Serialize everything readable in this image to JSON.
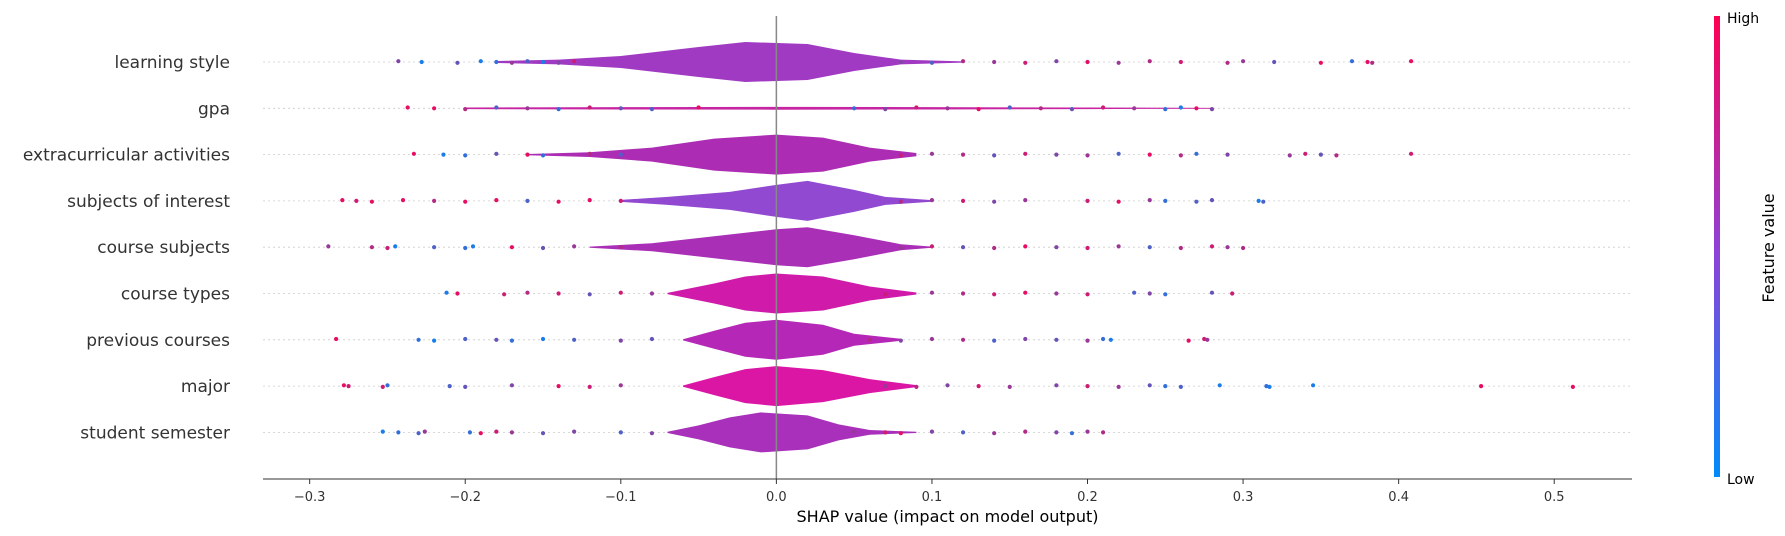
{
  "chart_data": {
    "type": "violin-beeswarm",
    "xlabel": "SHAP value (impact on model output)",
    "xlim": [
      -0.33,
      0.55
    ],
    "xticks": [
      -0.3,
      -0.2,
      -0.1,
      0.0,
      0.1,
      0.2,
      0.3,
      0.4,
      0.5
    ],
    "xtick_labels": [
      "−0.3",
      "−0.2",
      "−0.1",
      "0.0",
      "0.1",
      "0.2",
      "0.3",
      "0.4",
      "0.5"
    ],
    "colorbar": {
      "title": "Feature value",
      "high_label": "High",
      "low_label": "Low",
      "high_color": "#ff0052",
      "low_color": "#008bfb"
    },
    "features": [
      {
        "name": "learning style",
        "color": "#9b2fbf",
        "violin": [
          [
            -0.18,
            0.05
          ],
          [
            -0.14,
            0.12
          ],
          [
            -0.1,
            0.3
          ],
          [
            -0.05,
            0.75
          ],
          [
            -0.02,
            1.0
          ],
          [
            0.02,
            0.9
          ],
          [
            0.05,
            0.45
          ],
          [
            0.08,
            0.12
          ],
          [
            0.12,
            0.03
          ]
        ],
        "points": [
          [
            -0.243,
            0.5
          ],
          [
            -0.228,
            0.1
          ],
          [
            -0.205,
            0.4
          ],
          [
            -0.19,
            0.1
          ],
          [
            -0.18,
            0.2
          ],
          [
            -0.17,
            0.6
          ],
          [
            -0.16,
            0.3
          ],
          [
            -0.15,
            0.1
          ],
          [
            -0.14,
            0.5
          ],
          [
            -0.13,
            0.8
          ],
          [
            0.08,
            0.5
          ],
          [
            0.1,
            0.3
          ],
          [
            0.12,
            0.7
          ],
          [
            0.14,
            0.6
          ],
          [
            0.16,
            0.8
          ],
          [
            0.18,
            0.5
          ],
          [
            0.2,
            0.9
          ],
          [
            0.22,
            0.6
          ],
          [
            0.24,
            0.7
          ],
          [
            0.26,
            0.8
          ],
          [
            0.29,
            0.7
          ],
          [
            0.3,
            0.6
          ],
          [
            0.32,
            0.4
          ],
          [
            0.35,
            0.9
          ],
          [
            0.37,
            0.2
          ],
          [
            0.38,
            0.9
          ],
          [
            0.383,
            0.7
          ],
          [
            0.408,
            0.9
          ]
        ]
      },
      {
        "name": "gpa",
        "color": "#c41a9e",
        "violin": [
          [
            -0.2,
            0.04
          ],
          [
            -0.1,
            0.06
          ],
          [
            0.0,
            0.07
          ],
          [
            0.1,
            0.06
          ],
          [
            0.2,
            0.04
          ],
          [
            0.28,
            0.02
          ]
        ],
        "points": [
          [
            -0.237,
            0.9
          ],
          [
            -0.22,
            0.9
          ],
          [
            -0.2,
            0.7
          ],
          [
            -0.18,
            0.3
          ],
          [
            -0.16,
            0.6
          ],
          [
            -0.14,
            0.2
          ],
          [
            -0.12,
            0.8
          ],
          [
            -0.1,
            0.4
          ],
          [
            -0.08,
            0.3
          ],
          [
            -0.05,
            0.9
          ],
          [
            0.05,
            0.2
          ],
          [
            0.07,
            0.5
          ],
          [
            0.09,
            0.8
          ],
          [
            0.11,
            0.6
          ],
          [
            0.13,
            0.9
          ],
          [
            0.15,
            0.3
          ],
          [
            0.17,
            0.7
          ],
          [
            0.19,
            0.4
          ],
          [
            0.21,
            0.8
          ],
          [
            0.23,
            0.6
          ],
          [
            0.25,
            0.2
          ],
          [
            0.26,
            0.1
          ],
          [
            0.27,
            0.9
          ],
          [
            0.28,
            0.5
          ]
        ]
      },
      {
        "name": "extracurricular activities",
        "color": "#a822b0",
        "violin": [
          [
            -0.16,
            0.03
          ],
          [
            -0.12,
            0.12
          ],
          [
            -0.08,
            0.35
          ],
          [
            -0.04,
            0.8
          ],
          [
            0.0,
            1.0
          ],
          [
            0.03,
            0.85
          ],
          [
            0.06,
            0.35
          ],
          [
            0.09,
            0.08
          ]
        ],
        "points": [
          [
            -0.233,
            0.9
          ],
          [
            -0.214,
            0.1
          ],
          [
            -0.2,
            0.2
          ],
          [
            -0.18,
            0.4
          ],
          [
            -0.16,
            0.9
          ],
          [
            -0.15,
            0.2
          ],
          [
            -0.12,
            0.7
          ],
          [
            -0.1,
            0.3
          ],
          [
            0.08,
            0.8
          ],
          [
            0.1,
            0.6
          ],
          [
            0.12,
            0.7
          ],
          [
            0.14,
            0.4
          ],
          [
            0.16,
            0.8
          ],
          [
            0.18,
            0.5
          ],
          [
            0.2,
            0.6
          ],
          [
            0.22,
            0.3
          ],
          [
            0.24,
            0.9
          ],
          [
            0.26,
            0.7
          ],
          [
            0.27,
            0.2
          ],
          [
            0.29,
            0.5
          ],
          [
            0.33,
            0.6
          ],
          [
            0.34,
            0.8
          ],
          [
            0.35,
            0.4
          ],
          [
            0.36,
            0.7
          ],
          [
            0.408,
            0.8
          ]
        ]
      },
      {
        "name": "subjects of interest",
        "color": "#8a3fcd",
        "violin": [
          [
            -0.1,
            0.05
          ],
          [
            -0.07,
            0.2
          ],
          [
            -0.03,
            0.45
          ],
          [
            0.0,
            0.8
          ],
          [
            0.02,
            1.0
          ],
          [
            0.05,
            0.55
          ],
          [
            0.07,
            0.2
          ],
          [
            0.1,
            0.04
          ]
        ],
        "points": [
          [
            -0.279,
            0.9
          ],
          [
            -0.27,
            0.8
          ],
          [
            -0.26,
            0.9
          ],
          [
            -0.24,
            0.9
          ],
          [
            -0.22,
            0.7
          ],
          [
            -0.2,
            0.9
          ],
          [
            -0.18,
            0.9
          ],
          [
            -0.16,
            0.3
          ],
          [
            -0.14,
            0.9
          ],
          [
            -0.12,
            0.9
          ],
          [
            -0.1,
            0.8
          ],
          [
            0.08,
            0.7
          ],
          [
            0.1,
            0.6
          ],
          [
            0.12,
            0.8
          ],
          [
            0.14,
            0.5
          ],
          [
            0.16,
            0.6
          ],
          [
            0.2,
            0.8
          ],
          [
            0.22,
            0.9
          ],
          [
            0.24,
            0.6
          ],
          [
            0.25,
            0.2
          ],
          [
            0.27,
            0.3
          ],
          [
            0.28,
            0.4
          ],
          [
            0.31,
            0.1
          ],
          [
            0.313,
            0.3
          ]
        ]
      },
      {
        "name": "course subjects",
        "color": "#a424b3",
        "violin": [
          [
            -0.12,
            0.03
          ],
          [
            -0.08,
            0.2
          ],
          [
            -0.04,
            0.55
          ],
          [
            0.0,
            0.9
          ],
          [
            0.02,
            1.0
          ],
          [
            0.05,
            0.6
          ],
          [
            0.08,
            0.15
          ],
          [
            0.1,
            0.03
          ]
        ],
        "points": [
          [
            -0.288,
            0.6
          ],
          [
            -0.26,
            0.7
          ],
          [
            -0.25,
            0.8
          ],
          [
            -0.245,
            0.1
          ],
          [
            -0.22,
            0.3
          ],
          [
            -0.2,
            0.2
          ],
          [
            -0.195,
            0.1
          ],
          [
            -0.17,
            0.9
          ],
          [
            -0.15,
            0.4
          ],
          [
            -0.13,
            0.6
          ],
          [
            -0.1,
            0.7
          ],
          [
            0.08,
            0.6
          ],
          [
            0.1,
            0.8
          ],
          [
            0.12,
            0.4
          ],
          [
            0.14,
            0.7
          ],
          [
            0.16,
            0.9
          ],
          [
            0.18,
            0.5
          ],
          [
            0.2,
            0.8
          ],
          [
            0.22,
            0.6
          ],
          [
            0.24,
            0.3
          ],
          [
            0.26,
            0.7
          ],
          [
            0.28,
            0.8
          ],
          [
            0.29,
            0.6
          ],
          [
            0.3,
            0.7
          ]
        ]
      },
      {
        "name": "course types",
        "color": "#cc0ea5",
        "violin": [
          [
            -0.07,
            0.03
          ],
          [
            -0.04,
            0.5
          ],
          [
            -0.02,
            0.85
          ],
          [
            0.0,
            1.0
          ],
          [
            0.03,
            0.85
          ],
          [
            0.06,
            0.35
          ],
          [
            0.09,
            0.05
          ]
        ],
        "points": [
          [
            -0.212,
            0.1
          ],
          [
            -0.205,
            0.9
          ],
          [
            -0.175,
            0.8
          ],
          [
            -0.16,
            0.7
          ],
          [
            -0.14,
            0.8
          ],
          [
            -0.12,
            0.4
          ],
          [
            -0.1,
            0.8
          ],
          [
            -0.08,
            0.6
          ],
          [
            0.07,
            0.8
          ],
          [
            0.1,
            0.6
          ],
          [
            0.12,
            0.7
          ],
          [
            0.14,
            0.8
          ],
          [
            0.16,
            0.9
          ],
          [
            0.18,
            0.6
          ],
          [
            0.2,
            0.8
          ],
          [
            0.23,
            0.3
          ],
          [
            0.24,
            0.5
          ],
          [
            0.25,
            0.2
          ],
          [
            0.28,
            0.4
          ],
          [
            0.293,
            0.8
          ]
        ]
      },
      {
        "name": "previous courses",
        "color": "#b11cb3",
        "violin": [
          [
            -0.06,
            0.03
          ],
          [
            -0.04,
            0.45
          ],
          [
            -0.02,
            0.85
          ],
          [
            0.0,
            1.0
          ],
          [
            0.03,
            0.75
          ],
          [
            0.05,
            0.3
          ],
          [
            0.08,
            0.05
          ]
        ],
        "points": [
          [
            -0.283,
            0.9
          ],
          [
            -0.23,
            0.2
          ],
          [
            -0.22,
            0.1
          ],
          [
            -0.2,
            0.3
          ],
          [
            -0.18,
            0.4
          ],
          [
            -0.17,
            0.2
          ],
          [
            -0.15,
            0.1
          ],
          [
            -0.13,
            0.3
          ],
          [
            -0.1,
            0.5
          ],
          [
            -0.08,
            0.4
          ],
          [
            0.06,
            0.7
          ],
          [
            0.08,
            0.5
          ],
          [
            0.1,
            0.6
          ],
          [
            0.12,
            0.7
          ],
          [
            0.14,
            0.3
          ],
          [
            0.16,
            0.5
          ],
          [
            0.18,
            0.4
          ],
          [
            0.2,
            0.6
          ],
          [
            0.21,
            0.2
          ],
          [
            0.215,
            0.1
          ],
          [
            0.265,
            0.9
          ],
          [
            0.275,
            0.8
          ],
          [
            0.277,
            0.6
          ]
        ]
      },
      {
        "name": "major",
        "color": "#d90aa0",
        "violin": [
          [
            -0.06,
            0.03
          ],
          [
            -0.04,
            0.45
          ],
          [
            -0.02,
            0.85
          ],
          [
            0.0,
            1.0
          ],
          [
            0.03,
            0.8
          ],
          [
            0.06,
            0.35
          ],
          [
            0.09,
            0.05
          ]
        ],
        "points": [
          [
            -0.278,
            0.9
          ],
          [
            -0.275,
            0.8
          ],
          [
            -0.253,
            0.8
          ],
          [
            -0.25,
            0.2
          ],
          [
            -0.21,
            0.3
          ],
          [
            -0.2,
            0.4
          ],
          [
            -0.17,
            0.5
          ],
          [
            -0.14,
            0.9
          ],
          [
            -0.12,
            0.8
          ],
          [
            -0.1,
            0.6
          ],
          [
            0.07,
            0.6
          ],
          [
            0.09,
            0.7
          ],
          [
            0.11,
            0.5
          ],
          [
            0.13,
            0.8
          ],
          [
            0.15,
            0.6
          ],
          [
            0.18,
            0.5
          ],
          [
            0.2,
            0.8
          ],
          [
            0.22,
            0.6
          ],
          [
            0.24,
            0.4
          ],
          [
            0.25,
            0.2
          ],
          [
            0.26,
            0.3
          ],
          [
            0.285,
            0.1
          ],
          [
            0.315,
            0.2
          ],
          [
            0.317,
            0.1
          ],
          [
            0.345,
            0.1
          ],
          [
            0.453,
            0.9
          ],
          [
            0.512,
            0.9
          ]
        ]
      },
      {
        "name": "student semester",
        "color": "#a325b6",
        "violin": [
          [
            -0.07,
            0.03
          ],
          [
            -0.05,
            0.35
          ],
          [
            -0.03,
            0.75
          ],
          [
            -0.01,
            1.0
          ],
          [
            0.02,
            0.85
          ],
          [
            0.04,
            0.4
          ],
          [
            0.06,
            0.12
          ],
          [
            0.09,
            0.03
          ]
        ],
        "points": [
          [
            -0.253,
            0.1
          ],
          [
            -0.243,
            0.2
          ],
          [
            -0.23,
            0.3
          ],
          [
            -0.226,
            0.6
          ],
          [
            -0.197,
            0.2
          ],
          [
            -0.19,
            0.9
          ],
          [
            -0.18,
            0.8
          ],
          [
            -0.17,
            0.6
          ],
          [
            -0.15,
            0.4
          ],
          [
            -0.13,
            0.5
          ],
          [
            -0.1,
            0.3
          ],
          [
            -0.08,
            0.5
          ],
          [
            0.05,
            0.6
          ],
          [
            0.07,
            0.8
          ],
          [
            0.08,
            0.9
          ],
          [
            0.1,
            0.5
          ],
          [
            0.12,
            0.3
          ],
          [
            0.14,
            0.6
          ],
          [
            0.16,
            0.7
          ],
          [
            0.18,
            0.5
          ],
          [
            0.19,
            0.2
          ],
          [
            0.2,
            0.6
          ],
          [
            0.21,
            0.7
          ]
        ]
      }
    ]
  }
}
